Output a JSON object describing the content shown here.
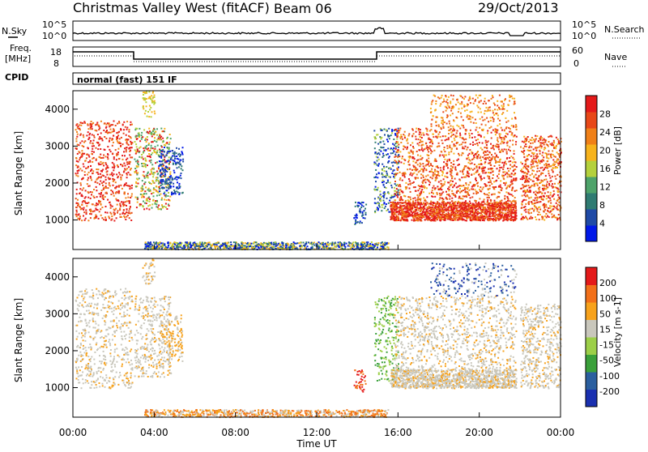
{
  "header": {
    "title": "Christmas Valley West (fitACF)",
    "beam": "Beam 06",
    "date": "29/Oct/2013"
  },
  "noise_panel": {
    "left_label": "N.Sky",
    "left_ticks": [
      "10^5",
      "10^0"
    ],
    "right_label": "N.Search",
    "right_ticks": [
      "10^5",
      "10^0"
    ]
  },
  "freq_panel": {
    "left_label_1": "Freq.",
    "left_label_2": "[MHz]",
    "left_ticks": [
      "18",
      "8"
    ],
    "right_label": "Nave",
    "right_ticks": [
      "60",
      "0"
    ]
  },
  "cpid": {
    "label": "CPID",
    "value": "normal (fast) 151 IF"
  },
  "x_axis": {
    "label": "Time UT",
    "ticks": [
      "00:00",
      "04:00",
      "08:00",
      "12:00",
      "16:00",
      "20:00",
      "00:00"
    ]
  },
  "colors": {
    "power": [
      "#0018e8",
      "#1f4aa6",
      "#2f7b72",
      "#4ea36a",
      "#b5d13c",
      "#f7b31c",
      "#f08018",
      "#e84818",
      "#e41a1a"
    ],
    "velocity": [
      "#e41a1a",
      "#f2701a",
      "#f7a21c",
      "#c9c7bc",
      "#9ccf48",
      "#3aa03a",
      "#2b5f9f",
      "#1a30b0"
    ]
  },
  "chart_data": [
    {
      "type": "heatmap",
      "title": "",
      "xlabel": "",
      "ylabel": "Slant Range [km]",
      "yticks": [
        "1000",
        "2000",
        "3000",
        "4000"
      ],
      "ylim": [
        200,
        4500
      ],
      "xlim": [
        0,
        24
      ],
      "colorbar": {
        "label": "Power [dB]",
        "ticks": [
          "4",
          "8",
          "12",
          "16",
          "20",
          "24",
          "28"
        ]
      }
    },
    {
      "type": "heatmap",
      "title": "",
      "xlabel": "Time UT",
      "ylabel": "Slant Range [km]",
      "yticks": [
        "1000",
        "2000",
        "3000",
        "4000"
      ],
      "ylim": [
        200,
        4500
      ],
      "xlim": [
        0,
        24
      ],
      "colorbar": {
        "label": "Velocity [m s-1]",
        "ticks": [
          "200",
          "100",
          "50",
          "15",
          "-15",
          "-50",
          "-100",
          "-200"
        ]
      }
    }
  ]
}
